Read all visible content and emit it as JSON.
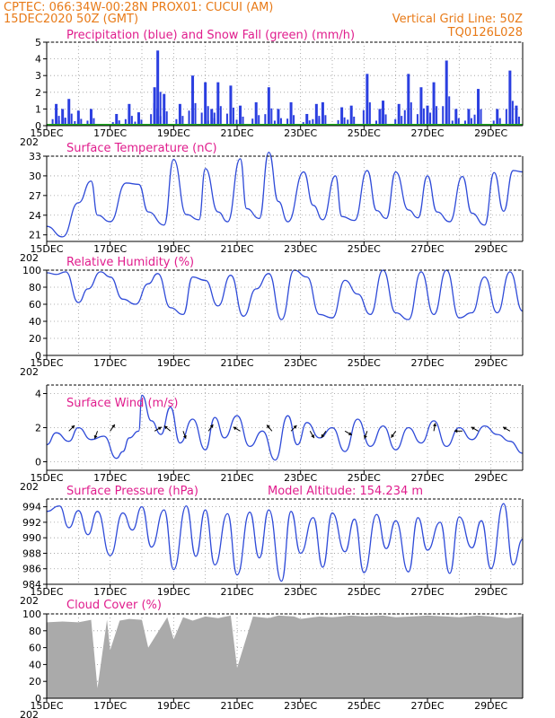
{
  "header": {
    "line1": "CPTEC:   066:34W-00:28N   PROX01: CUCUI (AM)",
    "line2": "15DEC2020 50Z (GMT)",
    "grid_note": "Vertical Grid Line: 50Z",
    "code": "TQ0126L028"
  },
  "x_axis": {
    "tick_labels": [
      "15DEC",
      "17DEC",
      "19DEC",
      "21DEC",
      "23DEC",
      "25DEC",
      "27DEC",
      "29DEC"
    ],
    "year_stub": "202"
  },
  "colors": {
    "line": "#2f4bd8",
    "bar": "#2b3fe0",
    "snow": "#22aa22",
    "cloud": "#aaaaaa",
    "title": "#e01d8d",
    "header": "#e87a17"
  },
  "chart_data": [
    {
      "id": "precip",
      "type": "bar",
      "title": "Precipitation (blue) and Snow Fall (green) (mm/h)",
      "ylim": [
        0,
        5
      ],
      "yticks": [
        "0",
        "1",
        "2",
        "3",
        "4",
        "5"
      ],
      "x_range_days": [
        0,
        15
      ],
      "series": [
        {
          "name": "Precipitation",
          "x_days": [
            0.3,
            0.5,
            0.7,
            1.0,
            1.4,
            2.2,
            2.6,
            2.9,
            3.4,
            3.5,
            3.7,
            4.2,
            4.6,
            5.0,
            5.2,
            5.4,
            5.8,
            6.1,
            6.6,
            7.0,
            7.3,
            7.7,
            8.2,
            8.5,
            8.7,
            9.3,
            9.6,
            10.1,
            10.5,
            10.6,
            11.1,
            11.4,
            11.8,
            12.0,
            12.2,
            12.6,
            12.9,
            13.3,
            13.6,
            14.2,
            14.6,
            14.8
          ],
          "values": [
            1.3,
            1.0,
            1.6,
            0.9,
            1.0,
            0.7,
            1.3,
            0.8,
            2.3,
            4.5,
            1.9,
            1.3,
            3.0,
            2.6,
            1.0,
            2.6,
            2.4,
            1.2,
            1.4,
            2.3,
            1.0,
            1.4,
            0.7,
            1.3,
            1.4,
            1.1,
            1.2,
            3.1,
            1.0,
            1.5,
            1.3,
            3.1,
            2.3,
            1.2,
            2.6,
            3.9,
            1.0,
            1.0,
            2.2,
            1.0,
            3.3,
            1.2
          ]
        },
        {
          "name": "Snow Fall",
          "x_days": [
            0,
            15
          ],
          "values": [
            0,
            0
          ]
        }
      ]
    },
    {
      "id": "temp",
      "type": "line",
      "title": "Surface Temperature (nC)",
      "ylim": [
        20,
        33
      ],
      "yticks": [
        "21",
        "24",
        "27",
        "30",
        "33"
      ],
      "x_days": [
        0,
        0.5,
        1.0,
        1.4,
        1.6,
        2.0,
        2.5,
        2.9,
        3.2,
        3.7,
        4.0,
        4.4,
        4.8,
        5.0,
        5.4,
        5.7,
        6.1,
        6.3,
        6.7,
        7.0,
        7.3,
        7.6,
        8.1,
        8.4,
        8.7,
        9.1,
        9.3,
        9.7,
        10.1,
        10.4,
        10.7,
        11.0,
        11.4,
        11.7,
        12.0,
        12.3,
        12.7,
        13.1,
        13.4,
        13.8,
        14.1,
        14.4,
        14.7,
        15.0
      ],
      "values": [
        22.3,
        20.7,
        25.9,
        29.2,
        24.0,
        23.0,
        28.9,
        28.7,
        24.5,
        22.5,
        32.5,
        24.1,
        23.3,
        31.1,
        24.5,
        23.0,
        32.6,
        25.0,
        23.5,
        33.6,
        26.1,
        23.0,
        30.6,
        25.5,
        23.3,
        30.0,
        23.8,
        23.2,
        30.8,
        24.7,
        23.5,
        30.6,
        24.8,
        23.6,
        30.0,
        24.5,
        23.0,
        29.9,
        24.3,
        22.5,
        30.5,
        24.6,
        30.8,
        30.6
      ]
    },
    {
      "id": "rh",
      "type": "line",
      "title": "Relative Humidity (%)",
      "ylim": [
        0,
        100
      ],
      "yticks": [
        "0",
        "20",
        "40",
        "60",
        "80",
        "100"
      ],
      "x_days": [
        0,
        0.3,
        0.6,
        1.0,
        1.3,
        1.7,
        2.0,
        2.4,
        2.8,
        3.2,
        3.5,
        3.9,
        4.3,
        4.6,
        5.0,
        5.4,
        5.8,
        6.2,
        6.6,
        7.0,
        7.4,
        7.8,
        8.2,
        8.6,
        9.0,
        9.4,
        9.8,
        10.2,
        10.6,
        11.0,
        11.4,
        11.8,
        12.2,
        12.6,
        13.0,
        13.4,
        13.8,
        14.2,
        14.6,
        15.0
      ],
      "values": [
        97,
        95,
        98,
        62,
        78,
        98,
        92,
        66,
        60,
        84,
        96,
        56,
        48,
        92,
        88,
        58,
        94,
        46,
        78,
        96,
        42,
        100,
        92,
        48,
        44,
        88,
        72,
        48,
        100,
        50,
        42,
        98,
        48,
        100,
        44,
        50,
        92,
        50,
        98,
        52
      ]
    },
    {
      "id": "wind",
      "type": "line",
      "title": "Surface Wind (m/s)",
      "ylim": [
        -0.5,
        4.5
      ],
      "yticks": [
        "0",
        "2",
        "4"
      ],
      "x_days": [
        0,
        0.3,
        0.7,
        1.0,
        1.4,
        1.8,
        2.2,
        2.4,
        2.6,
        2.9,
        3.0,
        3.3,
        3.6,
        3.9,
        4.2,
        4.6,
        5.0,
        5.3,
        5.6,
        6.0,
        6.4,
        6.8,
        7.2,
        7.6,
        7.9,
        8.2,
        8.6,
        9.0,
        9.4,
        9.8,
        10.2,
        10.6,
        11.0,
        11.4,
        11.8,
        12.2,
        12.6,
        13.0,
        13.4,
        13.8,
        14.2,
        14.6,
        15.0
      ],
      "values": [
        1.0,
        1.7,
        1.2,
        2.0,
        1.3,
        1.5,
        0.2,
        0.6,
        1.4,
        1.8,
        3.9,
        2.4,
        1.6,
        3.2,
        1.1,
        2.5,
        0.7,
        2.6,
        1.4,
        2.7,
        0.9,
        1.8,
        0.1,
        2.7,
        1.0,
        2.3,
        1.4,
        2.0,
        0.6,
        2.5,
        0.9,
        2.1,
        0.7,
        2.0,
        1.1,
        2.4,
        0.9,
        2.0,
        1.3,
        2.1,
        1.6,
        1.2,
        0.5
      ],
      "arrows": [
        {
          "x_days": 0.7,
          "dir": 45
        },
        {
          "x_days": 1.6,
          "dir": 200
        },
        {
          "x_days": 2.0,
          "dir": 35
        },
        {
          "x_days": 3.4,
          "dir": 60
        },
        {
          "x_days": 3.9,
          "dir": 310
        },
        {
          "x_days": 4.3,
          "dir": 160
        },
        {
          "x_days": 5.1,
          "dir": 35
        },
        {
          "x_days": 6.1,
          "dir": 300
        },
        {
          "x_days": 7.1,
          "dir": 320
        },
        {
          "x_days": 7.7,
          "dir": 45
        },
        {
          "x_days": 8.3,
          "dir": 150
        },
        {
          "x_days": 8.8,
          "dir": 215
        },
        {
          "x_days": 9.4,
          "dir": 120
        },
        {
          "x_days": 10.1,
          "dir": 200
        },
        {
          "x_days": 11.0,
          "dir": 215
        },
        {
          "x_days": 12.2,
          "dir": 10
        },
        {
          "x_days": 13.1,
          "dir": 270
        },
        {
          "x_days": 13.6,
          "dir": 300
        },
        {
          "x_days": 14.6,
          "dir": 300
        }
      ]
    },
    {
      "id": "pressure",
      "type": "line",
      "title": "Surface Pressure (hPa)",
      "annotation": "Model Altitude: 154.234 m",
      "ylim": [
        984,
        995
      ],
      "yticks": [
        "984",
        "986",
        "988",
        "990",
        "992",
        "994"
      ],
      "x_days": [
        0,
        0.4,
        0.7,
        1.0,
        1.3,
        1.6,
        2.0,
        2.4,
        2.7,
        3.0,
        3.3,
        3.7,
        4.0,
        4.4,
        4.7,
        5.0,
        5.3,
        5.7,
        6.0,
        6.4,
        6.7,
        7.0,
        7.4,
        7.7,
        8.0,
        8.4,
        8.7,
        9.0,
        9.4,
        9.7,
        10.0,
        10.4,
        10.7,
        11.0,
        11.4,
        11.7,
        12.0,
        12.4,
        12.7,
        13.0,
        13.4,
        13.7,
        14.0,
        14.4,
        14.7,
        15.0
      ],
      "values": [
        993.4,
        994.1,
        991.3,
        993.5,
        990.4,
        993.4,
        987.7,
        993.2,
        991.0,
        994.0,
        988.8,
        993.6,
        985.9,
        994.1,
        987.6,
        993.6,
        986.5,
        993.1,
        985.2,
        993.3,
        987.4,
        993.6,
        984.4,
        993.4,
        988.0,
        992.6,
        986.2,
        993.2,
        988.2,
        992.4,
        985.5,
        993.0,
        988.6,
        992.2,
        985.6,
        992.6,
        988.4,
        992.0,
        985.4,
        992.7,
        988.7,
        992.2,
        986.0,
        994.4,
        986.5,
        989.8
      ]
    },
    {
      "id": "cloud",
      "type": "area",
      "title": "Cloud Cover (%)",
      "ylim": [
        0,
        100
      ],
      "yticks": [
        "0",
        "20",
        "40",
        "60",
        "80",
        "100"
      ],
      "x_days": [
        0,
        0.5,
        1.0,
        1.4,
        1.6,
        1.9,
        2.0,
        2.3,
        2.6,
        3.0,
        3.2,
        3.8,
        4.0,
        4.3,
        4.6,
        5.0,
        5.4,
        5.8,
        6.0,
        6.5,
        7.0,
        7.3,
        7.8,
        8.0,
        8.6,
        9.0,
        9.6,
        10.0,
        10.6,
        11.0,
        11.5,
        12.0,
        12.6,
        13.0,
        13.6,
        14.0,
        14.5,
        15.0
      ],
      "values": [
        90,
        91,
        90,
        93,
        12,
        93,
        57,
        92,
        94,
        93,
        60,
        96,
        70,
        96,
        92,
        97,
        95,
        98,
        36,
        97,
        95,
        98,
        97,
        94,
        97,
        96,
        98,
        97,
        98,
        96,
        97,
        98,
        97,
        96,
        98,
        97,
        95,
        97
      ]
    }
  ]
}
